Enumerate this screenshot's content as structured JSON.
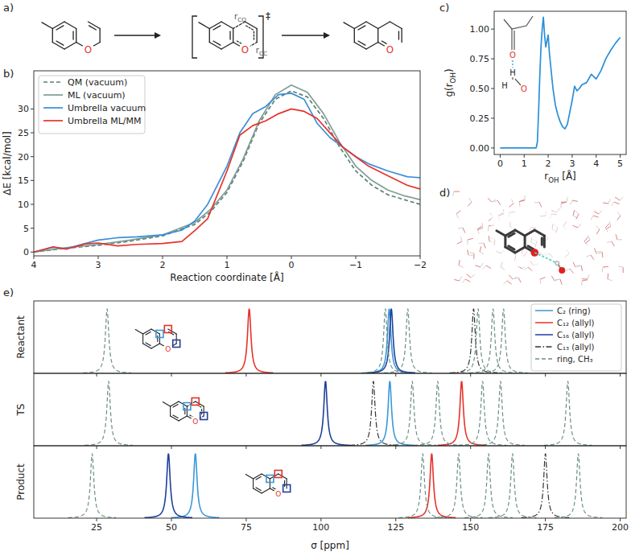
{
  "panel_labels": [
    "a)",
    "b)",
    "c)",
    "d)",
    "e)"
  ],
  "scheme": {
    "ts_mark": "‡",
    "bond_labels": [
      [
        "r",
        "CO"
      ],
      [
        "r",
        "CC"
      ]
    ],
    "atom_label": "O"
  },
  "chart_data": [
    {
      "type": "line",
      "xlabel": "Reaction coordinate [Å]",
      "ylabel": "ΔE [kcal/mol]",
      "xlim": [
        4,
        -2
      ],
      "ylim": [
        -0.8,
        38
      ],
      "xticks": [
        4,
        3,
        2,
        1,
        0,
        {
          "value": -1,
          "label": "−1"
        },
        {
          "value": -2,
          "label": "−2"
        }
      ],
      "yticks": [
        0,
        5,
        10,
        15,
        20,
        25,
        30
      ],
      "legend": "upper left",
      "series": [
        {
          "name": "QM (vacuum)",
          "color": "#5f7f77",
          "line_style": "dashed",
          "x": [
            4,
            3.5,
            3,
            2.5,
            2,
            1.5,
            1.25,
            1,
            0.75,
            0.5,
            0.25,
            0,
            -0.25,
            -0.5,
            -0.75,
            -1,
            -1.25,
            -1.5,
            -1.75,
            -2
          ],
          "values": [
            0,
            0.8,
            1.4,
            2.3,
            3.4,
            5.8,
            8.5,
            12.5,
            19,
            27,
            32,
            33.8,
            32.5,
            28,
            22,
            17,
            14,
            12,
            11,
            10
          ]
        },
        {
          "name": "ML (vacuum)",
          "color": "#7f9d95",
          "line_style": "solid",
          "x": [
            4,
            3.5,
            3,
            2.5,
            2,
            1.5,
            1.25,
            1,
            0.75,
            0.5,
            0.25,
            0,
            -0.25,
            -0.5,
            -0.75,
            -1,
            -1.25,
            -1.5,
            -1.75,
            -2
          ],
          "values": [
            0,
            0.9,
            1.6,
            2.5,
            3.6,
            6.2,
            9,
            13,
            19.5,
            27.5,
            33,
            35,
            33.5,
            29,
            23,
            18,
            15,
            13,
            11.8,
            11
          ]
        },
        {
          "name": "Umbrella vacuum",
          "color": "#3a8fd8",
          "line_style": "solid",
          "x": [
            4,
            3.7,
            3.5,
            3.2,
            3,
            2.7,
            2.4,
            2,
            1.7,
            1.5,
            1.3,
            1,
            0.8,
            0.6,
            0.4,
            0.2,
            0,
            -0.2,
            -0.4,
            -0.6,
            -0.8,
            -1,
            -1.2,
            -1.5,
            -1.8,
            -2
          ],
          "values": [
            0,
            1,
            0.7,
            1.8,
            2.5,
            3,
            3.2,
            3.6,
            4.6,
            6.5,
            10,
            18,
            25,
            29,
            30.5,
            33,
            33.3,
            32,
            27,
            24,
            22,
            20,
            18.5,
            17,
            15.8,
            15.6
          ]
        },
        {
          "name": "Umbrella ML/MM",
          "color": "#e5332a",
          "line_style": "solid",
          "x": [
            4,
            3.7,
            3.5,
            3.2,
            3,
            2.7,
            2.4,
            2,
            1.7,
            1.5,
            1.3,
            1,
            0.8,
            0.6,
            0.4,
            0.2,
            0,
            -0.2,
            -0.4,
            -0.6,
            -0.8,
            -1,
            -1.2,
            -1.5,
            -1.8,
            -2
          ],
          "values": [
            0,
            1.1,
            0.6,
            1.7,
            1.9,
            1.3,
            1.6,
            1.8,
            2.2,
            4.5,
            7,
            17,
            24.5,
            26.5,
            27.5,
            29,
            30,
            29.5,
            28,
            25,
            22,
            20,
            18,
            16,
            14,
            13.2
          ]
        }
      ]
    },
    {
      "type": "line",
      "xlabel_parts": [
        "r",
        "OH",
        " [Å]"
      ],
      "ylabel_parts": [
        "g(r",
        "OH",
        ")"
      ],
      "xlim": [
        -0.25,
        5.25
      ],
      "ylim": [
        -0.055,
        1.15
      ],
      "xticks": [
        0,
        1,
        2,
        3,
        4,
        5
      ],
      "yticks": [
        {
          "value": 0,
          "label": "0.00"
        },
        {
          "value": 0.25,
          "label": "0.25"
        },
        {
          "value": 0.5,
          "label": "0.50"
        },
        {
          "value": 0.75,
          "label": "0.75"
        },
        {
          "value": 1,
          "label": "1.00"
        }
      ],
      "color": "#2a8fd9",
      "annotations": [
        "O",
        "H",
        "H",
        "O"
      ],
      "x": [
        0,
        0.5,
        1,
        1.5,
        1.55,
        1.6,
        1.65,
        1.7,
        1.75,
        1.8,
        1.85,
        1.9,
        1.95,
        2,
        2.05,
        2.1,
        2.2,
        2.3,
        2.4,
        2.5,
        2.6,
        2.7,
        2.8,
        2.9,
        3,
        3.1,
        3.2,
        3.3,
        3.4,
        3.6,
        3.8,
        4,
        4.2,
        4.4,
        4.6,
        4.8,
        5
      ],
      "values": [
        0,
        0,
        0,
        0,
        0.05,
        0.3,
        0.6,
        0.85,
        1.0,
        1.1,
        0.95,
        0.85,
        0.9,
        0.95,
        0.8,
        0.7,
        0.5,
        0.36,
        0.28,
        0.22,
        0.18,
        0.16,
        0.2,
        0.3,
        0.4,
        0.52,
        0.48,
        0.5,
        0.53,
        0.55,
        0.62,
        0.58,
        0.65,
        0.75,
        0.82,
        0.88,
        0.93
      ]
    },
    {
      "type": "spectrum",
      "ylabel": "Reactant",
      "xlim": [
        4,
        202
      ],
      "ylim": [
        0,
        1.12
      ],
      "xticks": [
        25,
        50,
        75,
        100,
        125,
        150,
        175,
        200
      ],
      "tick_labels": false,
      "legend": "upper right",
      "annotations": [
        "O"
      ],
      "series": [
        {
          "name": "C₂ (ring)",
          "color": "#3a98d8",
          "line_style": "solid",
          "x": [
            122.8
          ],
          "values": [
            1
          ]
        },
        {
          "name": "C₁₂ (allyl)",
          "color": "#e5332a",
          "line_style": "solid",
          "x": [
            76
          ],
          "values": [
            1
          ]
        },
        {
          "name": "C₁₆ (allyl)",
          "color": "#1f3f9a",
          "line_style": "solid",
          "x": [
            123.5
          ],
          "values": [
            1
          ]
        },
        {
          "name": "C₁₃ (allyl)",
          "color": "#333333",
          "line_style": "dashdot",
          "x": [
            151
          ],
          "values": [
            1
          ]
        },
        {
          "name": "ring, CH₃",
          "color": "#6b8e85",
          "line_style": "dashed",
          "x": [
            28.5,
            121.5,
            129,
            152.5,
            157.5,
            161
          ],
          "values": [
            1,
            1,
            1,
            1,
            1,
            1
          ]
        }
      ]
    },
    {
      "type": "spectrum",
      "ylabel": "TS",
      "xlim": [
        4,
        202
      ],
      "ylim": [
        0,
        1.12
      ],
      "xticks": [
        25,
        50,
        75,
        100,
        125,
        150,
        175,
        200
      ],
      "tick_labels": false,
      "annotations": [
        "O"
      ],
      "series": [
        {
          "color": "#3a98d8",
          "line_style": "solid",
          "x": [
            123
          ],
          "values": [
            1
          ]
        },
        {
          "color": "#e5332a",
          "line_style": "solid",
          "x": [
            147
          ],
          "values": [
            1
          ]
        },
        {
          "color": "#1f3f9a",
          "line_style": "solid",
          "x": [
            101.5
          ],
          "values": [
            1
          ]
        },
        {
          "color": "#333333",
          "line_style": "dashdot",
          "x": [
            117.5
          ],
          "values": [
            1
          ]
        },
        {
          "color": "#6b8e85",
          "line_style": "dashed",
          "x": [
            29,
            130.5,
            139,
            154,
            160,
            182.5
          ],
          "values": [
            1,
            1,
            1,
            1,
            1,
            1
          ]
        }
      ]
    },
    {
      "type": "spectrum",
      "ylabel": "Product",
      "xlabel": "σ [ppm]",
      "xlim": [
        4,
        202
      ],
      "ylim": [
        0,
        1.12
      ],
      "xticks": [
        25,
        50,
        75,
        100,
        125,
        150,
        175,
        200
      ],
      "tick_labels": "x",
      "annotations": [
        "O"
      ],
      "series": [
        {
          "color": "#3a98d8",
          "line_style": "solid",
          "x": [
            58
          ],
          "values": [
            1
          ]
        },
        {
          "color": "#e5332a",
          "line_style": "solid",
          "x": [
            137
          ],
          "values": [
            1
          ]
        },
        {
          "color": "#1f3f9a",
          "line_style": "solid",
          "x": [
            49
          ],
          "values": [
            1
          ]
        },
        {
          "color": "#333333",
          "line_style": "dashdot",
          "x": [
            175
          ],
          "values": [
            1
          ]
        },
        {
          "color": "#6b8e85",
          "line_style": "dashed",
          "x": [
            23.5,
            134,
            146,
            156,
            164,
            186
          ],
          "values": [
            1,
            1,
            1,
            1,
            1,
            1
          ]
        }
      ]
    }
  ]
}
